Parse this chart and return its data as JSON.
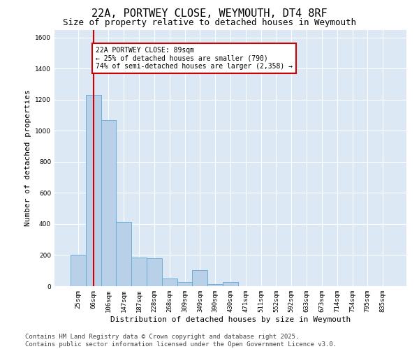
{
  "title1": "22A, PORTWEY CLOSE, WEYMOUTH, DT4 8RF",
  "title2": "Size of property relative to detached houses in Weymouth",
  "xlabel": "Distribution of detached houses by size in Weymouth",
  "ylabel": "Number of detached properties",
  "categories": [
    "25sqm",
    "66sqm",
    "106sqm",
    "147sqm",
    "187sqm",
    "228sqm",
    "268sqm",
    "309sqm",
    "349sqm",
    "390sqm",
    "430sqm",
    "471sqm",
    "511sqm",
    "552sqm",
    "592sqm",
    "633sqm",
    "673sqm",
    "714sqm",
    "754sqm",
    "795sqm",
    "835sqm"
  ],
  "values": [
    200,
    1230,
    1070,
    415,
    182,
    178,
    50,
    27,
    105,
    15,
    28,
    0,
    0,
    0,
    0,
    0,
    0,
    0,
    0,
    0,
    0
  ],
  "bar_color": "#b8d0e8",
  "bar_edge_color": "#6baed6",
  "bg_color": "#dce9f5",
  "grid_color": "#ffffff",
  "annotation_line1": "22A PORTWEY CLOSE: 89sqm",
  "annotation_line2": "← 25% of detached houses are smaller (790)",
  "annotation_line3": "74% of semi-detached houses are larger (2,358) →",
  "annotation_box_color": "#ffffff",
  "annotation_box_edge_color": "#cc0000",
  "vline_x": 1.0,
  "vline_color": "#cc0000",
  "ylim": [
    0,
    1650
  ],
  "yticks": [
    0,
    200,
    400,
    600,
    800,
    1000,
    1200,
    1400,
    1600
  ],
  "footer": "Contains HM Land Registry data © Crown copyright and database right 2025.\nContains public sector information licensed under the Open Government Licence v3.0.",
  "title_fontsize": 11,
  "subtitle_fontsize": 9,
  "tick_fontsize": 6.5,
  "label_fontsize": 8,
  "footer_fontsize": 6.5
}
